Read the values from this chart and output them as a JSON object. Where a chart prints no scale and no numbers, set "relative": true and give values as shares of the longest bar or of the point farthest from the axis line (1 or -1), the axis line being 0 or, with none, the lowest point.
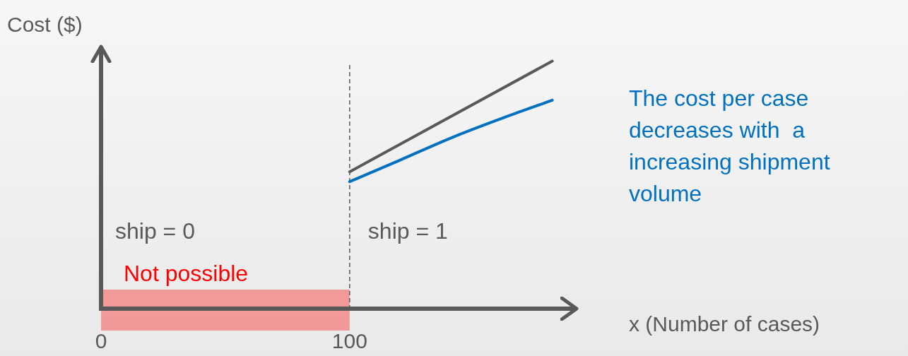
{
  "chart_data": {
    "type": "line",
    "relative": true,
    "xlabel": "x (Number of cases)",
    "ylabel": "Cost ($)",
    "xlim": [
      0,
      191
    ],
    "xticks": [
      0,
      100
    ],
    "grid": false,
    "legend": false,
    "marker": "none",
    "line_style": "solid",
    "series": [
      {
        "color": "#595959",
        "x": [
          100,
          181.5
        ],
        "values": [
          0.553,
          1
        ]
      },
      {
        "color": "#0070c0",
        "x": [
          100,
          120,
          141.6,
          164,
          181.5
        ],
        "values": [
          0.513,
          0.599,
          0.693,
          0.779,
          0.842
        ]
      }
    ],
    "ref_lines": [
      {
        "axis": "x",
        "value": 100,
        "color": "#595959",
        "line_style": "dashed"
      }
    ],
    "bands": [
      {
        "axis": "x",
        "from": 0,
        "to": 100,
        "label": "Not possible",
        "color": "#ff0000"
      }
    ],
    "annotations": [
      "ship = 0",
      "ship = 1",
      "The cost per case decreases with  a increasing shipment volume"
    ]
  }
}
